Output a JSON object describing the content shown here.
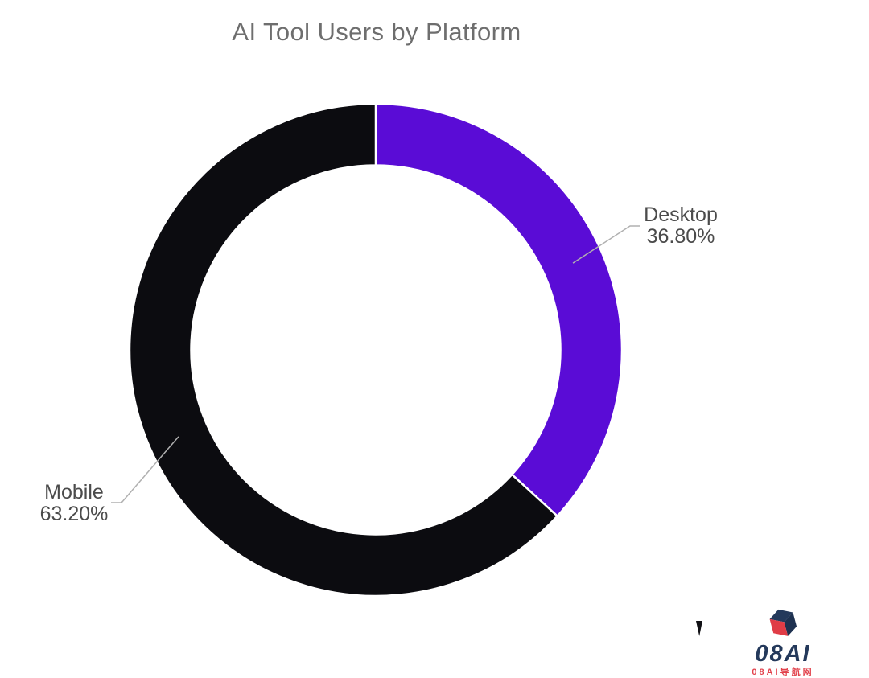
{
  "chart_data": {
    "type": "pie",
    "subtype": "donut",
    "title": "AI Tool Users by Platform",
    "categories": [
      "Desktop",
      "Mobile"
    ],
    "values": [
      36.8,
      63.2
    ],
    "value_labels": [
      "36.80%",
      "63.20%"
    ],
    "colors": [
      "#5a0cd6",
      "#0c0c10"
    ],
    "start_angle_deg": 0,
    "direction": "clockwise",
    "inner_radius_ratio": 0.75,
    "legend_position": "none",
    "label_style": "outside-with-leader-lines",
    "title_color": "#6e6e6e",
    "label_color": "#4b4b4b",
    "leader_line_color": "#b0b0b0",
    "background": "#ffffff"
  },
  "watermark": {
    "brand": "08AI",
    "tagline": "08AI导航网",
    "brand_color": "#24395b",
    "tagline_color": "#e2424c",
    "cube_navy": "#24395b",
    "cube_navy_dark": "#1e3150",
    "cube_red": "#e03c46"
  }
}
